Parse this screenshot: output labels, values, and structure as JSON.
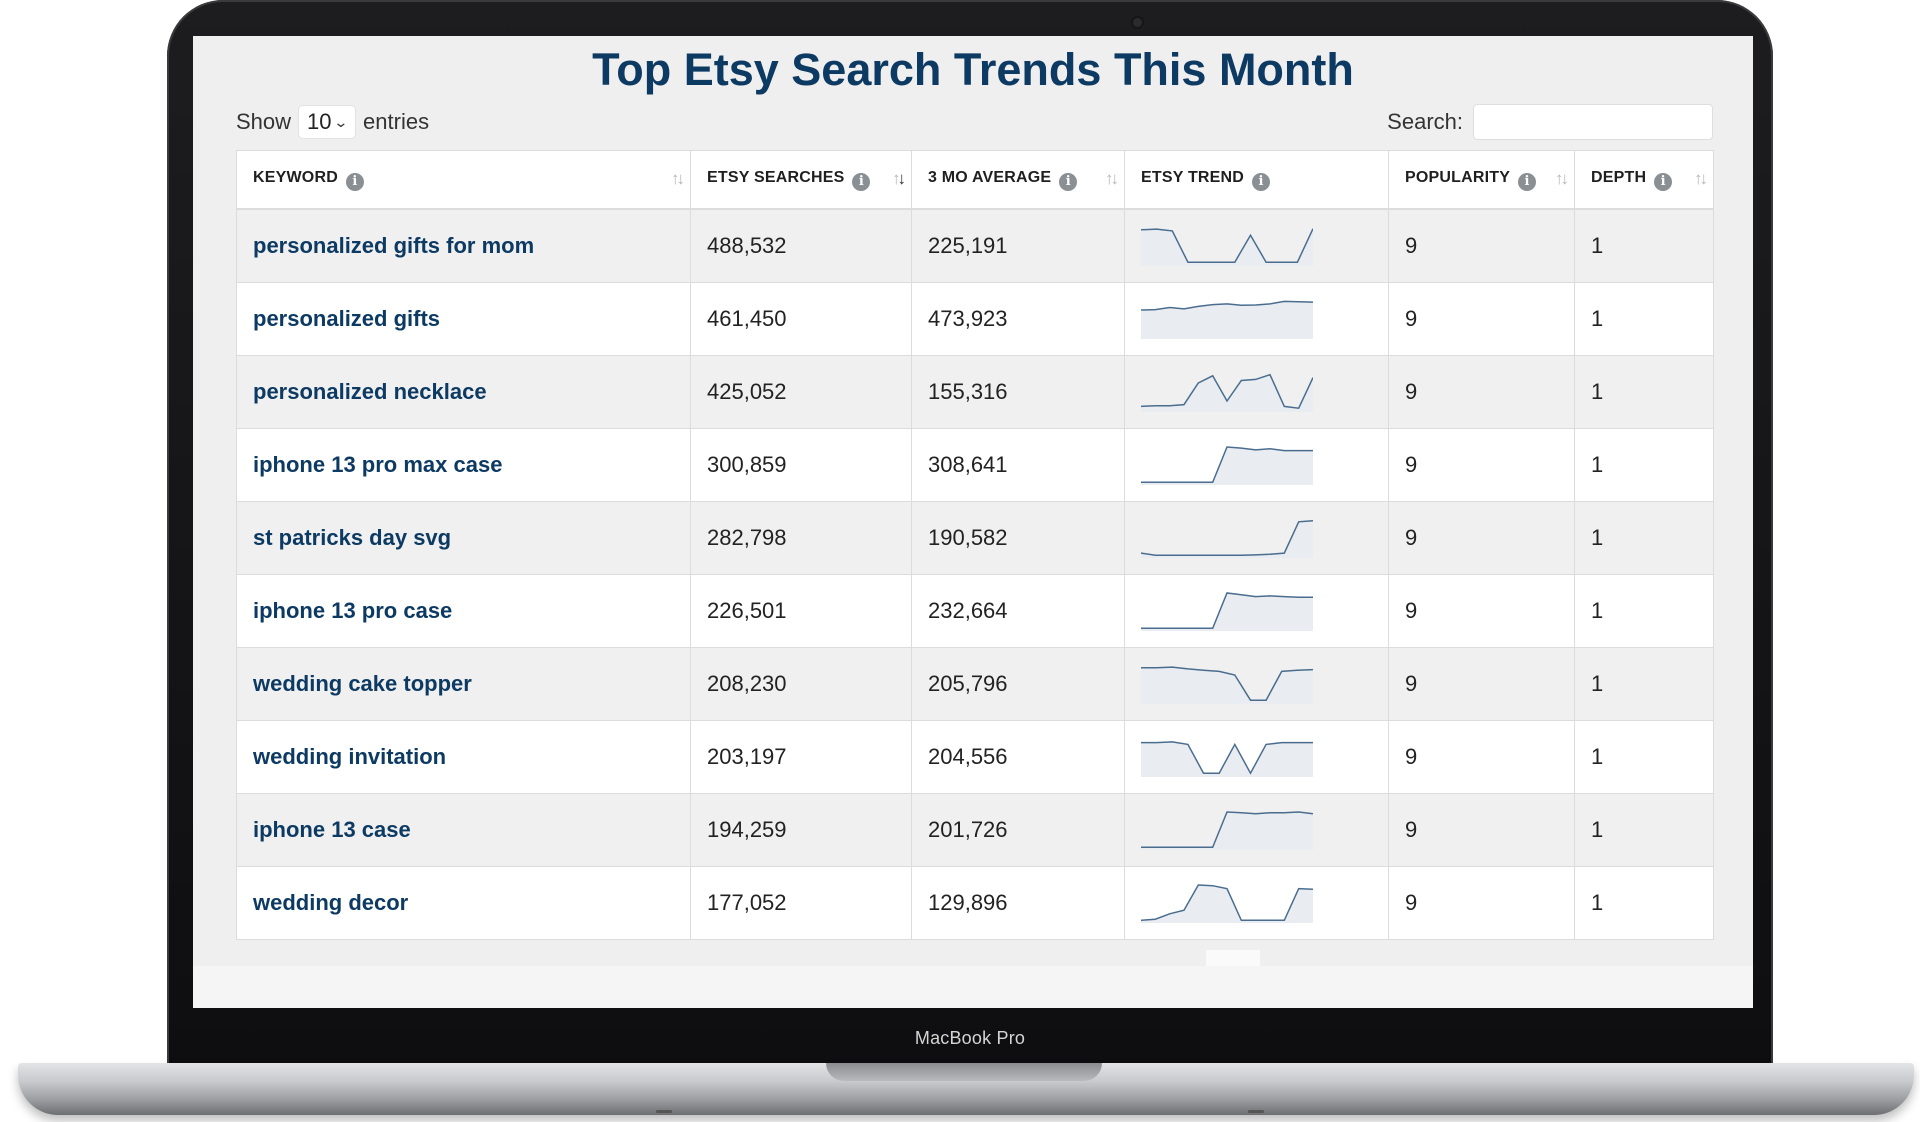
{
  "page": {
    "title": "Top Etsy Search Trends This Month",
    "show_label": "Show",
    "entries_label": "entries",
    "length_value": "10",
    "search_label": "Search:",
    "search_value": ""
  },
  "device": {
    "label": "MacBook Pro"
  },
  "colors": {
    "title": "#0d3a63",
    "keyword": "#0d3a63",
    "spark_line": "#4a6d8f",
    "spark_fill": "#e9edf1"
  },
  "columns": [
    {
      "label": "KEYWORD",
      "icon": "info-icon",
      "sort": "none"
    },
    {
      "label": "ETSY SEARCHES",
      "icon": "info-icon",
      "sort": "descending"
    },
    {
      "label": "3 MO AVERAGE",
      "icon": "info-icon",
      "sort": "none"
    },
    {
      "label": "ETSY TREND",
      "icon": "info-icon",
      "sort": "not-sortable"
    },
    {
      "label": "POPULARITY",
      "icon": "info-icon",
      "sort": "none"
    },
    {
      "label": "DEPTH",
      "icon": "info-icon",
      "sort": "none"
    }
  ],
  "rows": [
    {
      "keyword": "personalized gifts for mom",
      "searches": "488,532",
      "average": "225,191",
      "trend": [
        0.95,
        0.97,
        0.92,
        0.05,
        0.05,
        0.05,
        0.05,
        0.8,
        0.05,
        0.05,
        0.05,
        0.98
      ],
      "popularity": "9",
      "depth": "1"
    },
    {
      "keyword": "personalized gifts",
      "searches": "461,450",
      "average": "473,923",
      "trend": [
        0.75,
        0.76,
        0.82,
        0.78,
        0.85,
        0.9,
        0.92,
        0.88,
        0.89,
        0.92,
        0.99,
        0.98,
        0.97
      ],
      "popularity": "9",
      "depth": "1"
    },
    {
      "keyword": "personalized necklace",
      "searches": "425,052",
      "average": "155,316",
      "trend": [
        0.1,
        0.12,
        0.12,
        0.15,
        0.75,
        0.95,
        0.25,
        0.82,
        0.85,
        0.98,
        0.1,
        0.05,
        0.9
      ],
      "popularity": "9",
      "depth": "1"
    },
    {
      "keyword": "iphone 13 pro max case",
      "searches": "300,859",
      "average": "308,641",
      "trend": [
        0.02,
        0.02,
        0.02,
        0.02,
        0.02,
        0.02,
        1.0,
        0.97,
        0.92,
        0.95,
        0.9,
        0.9,
        0.9
      ],
      "popularity": "9",
      "depth": "1"
    },
    {
      "keyword": "st patricks day svg",
      "searches": "282,798",
      "average": "190,582",
      "trend": [
        0.08,
        0.02,
        0.02,
        0.02,
        0.02,
        0.02,
        0.02,
        0.02,
        0.03,
        0.05,
        0.08,
        0.95,
        0.98
      ],
      "popularity": "9",
      "depth": "1"
    },
    {
      "keyword": "iphone 13 pro case",
      "searches": "226,501",
      "average": "232,664",
      "trend": [
        0.02,
        0.02,
        0.02,
        0.02,
        0.02,
        0.02,
        1.0,
        0.95,
        0.9,
        0.92,
        0.9,
        0.88,
        0.88
      ],
      "popularity": "9",
      "depth": "1"
    },
    {
      "keyword": "wedding cake topper",
      "searches": "208,230",
      "average": "205,796",
      "trend": [
        0.95,
        0.95,
        0.97,
        0.92,
        0.88,
        0.85,
        0.75,
        0.05,
        0.05,
        0.85,
        0.88,
        0.9
      ],
      "popularity": "9",
      "depth": "1"
    },
    {
      "keyword": "wedding invitation",
      "searches": "203,197",
      "average": "204,556",
      "trend": [
        0.9,
        0.9,
        0.92,
        0.85,
        0.05,
        0.05,
        0.85,
        0.05,
        0.85,
        0.9,
        0.9,
        0.9
      ],
      "popularity": "9",
      "depth": "1"
    },
    {
      "keyword": "iphone 13 case",
      "searches": "194,259",
      "average": "201,726",
      "trend": [
        0.02,
        0.02,
        0.02,
        0.02,
        0.02,
        0.02,
        1.0,
        0.98,
        0.95,
        0.98,
        0.98,
        1.0,
        0.95
      ],
      "popularity": "9",
      "depth": "1"
    },
    {
      "keyword": "wedding decor",
      "searches": "177,052",
      "average": "129,896",
      "trend": [
        0.02,
        0.05,
        0.2,
        0.3,
        1.0,
        0.98,
        0.9,
        0.02,
        0.02,
        0.02,
        0.02,
        0.9,
        0.88
      ],
      "popularity": "9",
      "depth": "1"
    }
  ]
}
